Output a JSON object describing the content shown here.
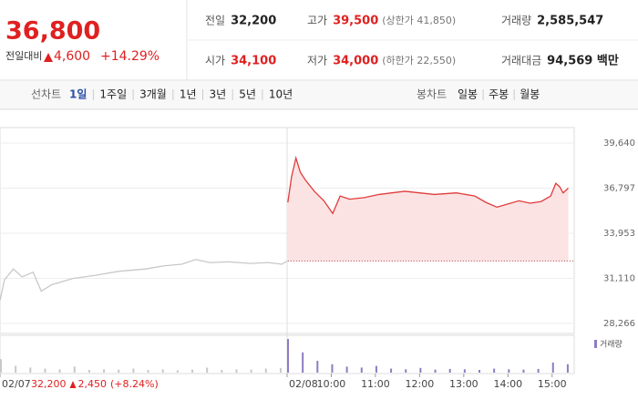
{
  "header": {
    "price": "36,800",
    "change_label": "전일대비",
    "change": "4,600",
    "change_rate": "+14.29%",
    "stats": [
      [
        {
          "label": "전일",
          "value": "32,200"
        },
        {
          "label": "고가",
          "value": "39,500",
          "note": "(상한가 41,850)"
        },
        {
          "label": "거래량",
          "value": "2,585,547"
        }
      ],
      [
        {
          "label": "시가",
          "value": "34,100"
        },
        {
          "label": "저가",
          "value": "34,000",
          "note": "(하한가 22,550)"
        },
        {
          "label": "거래대금",
          "value": "94,569 백만"
        }
      ]
    ]
  },
  "tabs": {
    "line_label": "선차트",
    "line": [
      "1일",
      "1주일",
      "3개월",
      "1년",
      "3년",
      "5년",
      "10년"
    ],
    "active": 0,
    "candle_label": "봉차트",
    "candle": [
      "일봉",
      "주봉",
      "월봉"
    ]
  },
  "chart_data": {
    "type": "line",
    "xlim": [
      0,
      780
    ],
    "xticks": [
      {
        "value": 0,
        "label": "02/07"
      },
      {
        "value": 390,
        "label": "02/08"
      },
      {
        "value": 450,
        "label": "10:00"
      },
      {
        "value": 510,
        "label": "11:00"
      },
      {
        "value": 570,
        "label": "12:00"
      },
      {
        "value": 630,
        "label": "13:00"
      },
      {
        "value": 690,
        "label": "14:00"
      },
      {
        "value": 750,
        "label": "15:00"
      }
    ],
    "ylim": [
      27630,
      40620
    ],
    "yticks": [
      {
        "value": 39640,
        "label": "39,640"
      },
      {
        "value": 36797,
        "label": "36,797"
      },
      {
        "value": 33953,
        "label": "33,953"
      },
      {
        "value": 31110,
        "label": "31,110"
      },
      {
        "value": 28266,
        "label": "28,266"
      }
    ],
    "grid": true,
    "reference": 32200,
    "series": [
      {
        "color": "#c8c8c8",
        "x": [
          0,
          6,
          18,
          30,
          45,
          56,
          70,
          99,
          130,
          161,
          198,
          223,
          247,
          266,
          285,
          310,
          340,
          365,
          383,
          390
        ],
        "values": [
          29700,
          31000,
          31700,
          31200,
          31500,
          30300,
          30700,
          31100,
          31300,
          31550,
          31700,
          31900,
          32000,
          32300,
          32100,
          32150,
          32050,
          32100,
          32000,
          32200
        ]
      },
      {
        "color": "#e03c3c",
        "fill": "#fbe3e3",
        "x": [
          391,
          396,
          402,
          408,
          415,
          427,
          440,
          452,
          462,
          475,
          495,
          515,
          532,
          550,
          570,
          590,
          620,
          645,
          660,
          675,
          690,
          705,
          720,
          735,
          748,
          755,
          760,
          765,
          772
        ],
        "values": [
          35900,
          37500,
          38700,
          37800,
          37300,
          36600,
          36000,
          35200,
          36300,
          36100,
          36200,
          36400,
          36500,
          36600,
          36500,
          36400,
          36500,
          36300,
          35900,
          35600,
          35800,
          36000,
          35850,
          35950,
          36300,
          37100,
          36900,
          36500,
          36800
        ]
      }
    ],
    "volume": {
      "name": "거래량",
      "vlim": [
        0,
        100
      ],
      "x": [
        0,
        20,
        40,
        60,
        80,
        100,
        120,
        140,
        160,
        180,
        200,
        220,
        240,
        260,
        280,
        300,
        320,
        340,
        360,
        380,
        390,
        410,
        430,
        450,
        470,
        490,
        510,
        530,
        550,
        570,
        590,
        610,
        630,
        650,
        670,
        690,
        710,
        730,
        750,
        770
      ],
      "values": [
        40,
        20,
        15,
        12,
        10,
        18,
        8,
        10,
        9,
        12,
        8,
        10,
        7,
        9,
        15,
        8,
        10,
        9,
        12,
        14,
        100,
        60,
        35,
        25,
        18,
        15,
        20,
        12,
        10,
        14,
        9,
        11,
        10,
        8,
        12,
        10,
        9,
        11,
        30,
        25
      ],
      "colors": [
        "#c8c8c8",
        "#8e7cc3"
      ]
    },
    "prev_info": {
      "close": "32,200",
      "change": "2,450",
      "rate": "(+8.24%)"
    }
  }
}
